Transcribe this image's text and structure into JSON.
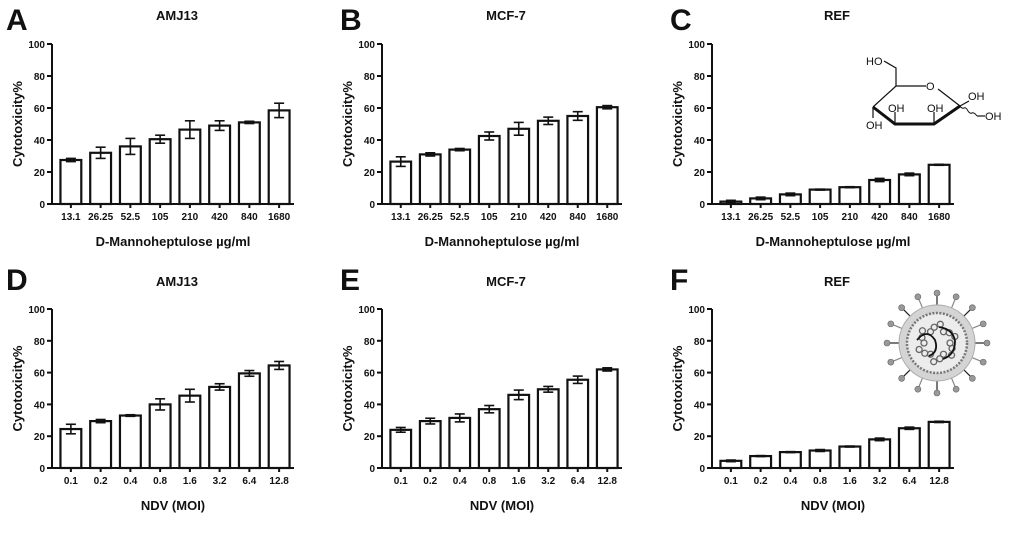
{
  "figure": {
    "bar_fill": "#ffffff",
    "ink_color": "#111111"
  },
  "chart_data": [
    {
      "panel": "A",
      "type": "bar",
      "title": "AMJ13",
      "xlabel": "D-Mannoheptulose µg/ml",
      "ylabel": "Cytotoxicity%",
      "categories": [
        "13.1",
        "26.25",
        "52.5",
        "105",
        "210",
        "420",
        "840",
        "1680"
      ],
      "values": [
        27.5,
        32,
        36,
        40.5,
        46.5,
        49,
        51,
        58.5
      ],
      "errors": [
        1,
        3.5,
        5,
        2.5,
        5.5,
        3,
        0.7,
        4.5
      ],
      "ylim": [
        0,
        100
      ],
      "yticks": [
        0,
        20,
        40,
        60,
        80,
        100
      ],
      "grid": false,
      "legend": "none"
    },
    {
      "panel": "B",
      "type": "bar",
      "title": "MCF-7",
      "xlabel": "D-Mannoheptulose µg/ml",
      "ylabel": "Cytotoxicity%",
      "categories": [
        "13.1",
        "26.25",
        "52.5",
        "105",
        "210",
        "420",
        "840",
        "1680"
      ],
      "values": [
        26.5,
        31,
        34,
        42.5,
        47,
        52,
        55,
        60.5
      ],
      "errors": [
        3,
        1,
        0.7,
        2.5,
        4,
        2.3,
        2.7,
        1
      ],
      "ylim": [
        0,
        100
      ],
      "yticks": [
        0,
        20,
        40,
        60,
        80,
        100
      ],
      "grid": false,
      "legend": "none"
    },
    {
      "panel": "C",
      "type": "bar",
      "title": "REF",
      "xlabel": "D-Mannoheptulose µg/ml",
      "ylabel": "Cytotoxicity%",
      "categories": [
        "13.1",
        "26.25",
        "52.5",
        "105",
        "210",
        "420",
        "840",
        "1680"
      ],
      "values": [
        1.5,
        3.5,
        6,
        9,
        10.5,
        15,
        18.5,
        24.5
      ],
      "errors": [
        0.8,
        0.8,
        0.8,
        0.3,
        0.3,
        1,
        0.8,
        0.3
      ],
      "ylim": [
        0,
        100
      ],
      "yticks": [
        0,
        20,
        40,
        60,
        80,
        100
      ],
      "grid": false,
      "legend": "none",
      "inset": "d-mannoheptulose-structure",
      "inset_labels": [
        "HO",
        "O",
        "OH",
        "OH",
        "OH",
        "OH",
        "OH"
      ]
    },
    {
      "panel": "D",
      "type": "bar",
      "title": "AMJ13",
      "xlabel": "NDV (MOI)",
      "ylabel": "Cytotoxicity%",
      "categories": [
        "0.1",
        "0.2",
        "0.4",
        "0.8",
        "1.6",
        "3.2",
        "6.4",
        "12.8"
      ],
      "values": [
        24.5,
        29.5,
        33,
        40,
        45.5,
        51,
        59.5,
        64.5
      ],
      "errors": [
        3,
        1,
        0.5,
        3.5,
        4,
        2,
        1.8,
        2.5
      ],
      "ylim": [
        0,
        100
      ],
      "yticks": [
        0,
        20,
        40,
        60,
        80,
        100
      ],
      "grid": false,
      "legend": "none"
    },
    {
      "panel": "E",
      "type": "bar",
      "title": "MCF-7",
      "xlabel": "NDV (MOI)",
      "ylabel": "Cytotoxicity%",
      "categories": [
        "0.1",
        "0.2",
        "0.4",
        "0.8",
        "1.6",
        "3.2",
        "6.4",
        "12.8"
      ],
      "values": [
        24,
        29.5,
        31.5,
        37,
        46,
        49.5,
        55.5,
        62
      ],
      "errors": [
        1.5,
        1.8,
        2.5,
        2.3,
        3,
        1.8,
        2.3,
        1
      ],
      "ylim": [
        0,
        100
      ],
      "yticks": [
        0,
        20,
        40,
        60,
        80,
        100
      ],
      "grid": false,
      "legend": "none"
    },
    {
      "panel": "F",
      "type": "bar",
      "title": "REF",
      "xlabel": "NDV (MOI)",
      "ylabel": "Cytotoxicity%",
      "categories": [
        "0.1",
        "0.2",
        "0.4",
        "0.8",
        "1.6",
        "3.2",
        "6.4",
        "12.8"
      ],
      "values": [
        4.5,
        7.5,
        10,
        11,
        13.5,
        18,
        25,
        29
      ],
      "errors": [
        0.5,
        0.3,
        0.3,
        0.6,
        0.3,
        0.8,
        0.7,
        0.4
      ],
      "ylim": [
        0,
        100
      ],
      "yticks": [
        0,
        20,
        40,
        60,
        80,
        100
      ],
      "grid": false,
      "legend": "none",
      "inset": "newcastle-disease-virus-illustration"
    }
  ]
}
